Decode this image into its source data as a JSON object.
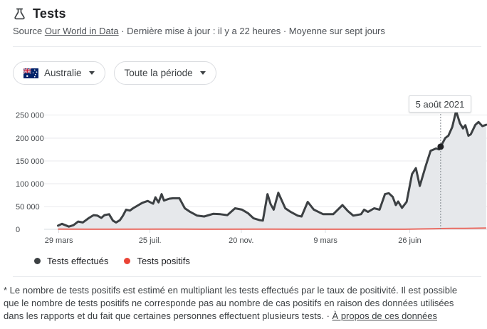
{
  "header": {
    "title": "Tests"
  },
  "source_line": {
    "prefix": "Source ",
    "link_label": "Our World in Data",
    "meta": " · Dernière mise à jour : il y a 22 heures · Moyenne sur sept jours"
  },
  "filters": {
    "country": {
      "label": "Australie",
      "flag": "australia-flag"
    },
    "period": {
      "label": "Toute la période"
    }
  },
  "tooltip": {
    "label": "5 août 2021"
  },
  "legend": [
    {
      "label": "Tests effectués",
      "color": "#3c4043"
    },
    {
      "label": "Tests positifs",
      "color": "#ea4335"
    }
  ],
  "footnote": {
    "text": "* Le nombre de tests positifs est estimé en multipliant les tests effectués par le taux de positivité. Il est possible que le nombre de tests positifs ne corresponde pas au nombre de cas positifs en raison des données utilisées dans les rapports et du fait que certaines personnes effectuent plusieurs tests.",
    "separator": " · ",
    "link_label": "À propos de ces données"
  },
  "colors": {
    "tests_line": "#3c4043",
    "tests_fill": "#e6e8eb",
    "positives_line": "#ea4335",
    "grid": "#e9eaec",
    "baseline": "#dadce0",
    "axis_text": "#45494d",
    "marker": "#202124",
    "dotted_guide": "#80868b"
  },
  "chart_data": {
    "type": "area",
    "title": "Tests",
    "xlabel": "",
    "ylabel": "",
    "grid": true,
    "legend_position": "bottom",
    "x_domain": [
      "2020-03-10",
      "2021-10-04"
    ],
    "ylim": [
      0,
      283000
    ],
    "y_ticks": [
      0,
      50000,
      100000,
      150000,
      200000,
      250000
    ],
    "y_tick_labels": [
      "0",
      "50 000",
      "100 000",
      "150 000",
      "200 000",
      "250 000"
    ],
    "x_ticks": [
      {
        "date": "2020-03-29",
        "label": "29 mars"
      },
      {
        "date": "2020-07-25",
        "label": "25 juil."
      },
      {
        "date": "2020-11-20",
        "label": "20 nov."
      },
      {
        "date": "2021-03-09",
        "label": "9 mars"
      },
      {
        "date": "2021-06-26",
        "label": "26 juin"
      }
    ],
    "marker": {
      "date": "2021-08-05",
      "value": 181000,
      "label": "5 août 2021"
    },
    "series": [
      {
        "name": "Tests effectués",
        "color": "#3c4043",
        "fill": "#e6e8eb",
        "points": [
          [
            "2020-03-28",
            8000
          ],
          [
            "2020-04-02",
            12000
          ],
          [
            "2020-04-11",
            6000
          ],
          [
            "2020-04-17",
            9000
          ],
          [
            "2020-04-23",
            17000
          ],
          [
            "2020-04-29",
            15000
          ],
          [
            "2020-05-07",
            25000
          ],
          [
            "2020-05-13",
            31000
          ],
          [
            "2020-05-18",
            30000
          ],
          [
            "2020-05-23",
            25000
          ],
          [
            "2020-05-27",
            31000
          ],
          [
            "2020-06-02",
            33000
          ],
          [
            "2020-06-07",
            19000
          ],
          [
            "2020-06-11",
            15000
          ],
          [
            "2020-06-16",
            20000
          ],
          [
            "2020-06-20",
            30000
          ],
          [
            "2020-06-24",
            43000
          ],
          [
            "2020-06-29",
            41000
          ],
          [
            "2020-07-03",
            46000
          ],
          [
            "2020-07-15",
            58000
          ],
          [
            "2020-07-22",
            62000
          ],
          [
            "2020-07-29",
            56000
          ],
          [
            "2020-08-01",
            70000
          ],
          [
            "2020-08-05",
            59000
          ],
          [
            "2020-08-09",
            77000
          ],
          [
            "2020-08-12",
            63000
          ],
          [
            "2020-08-19",
            67000
          ],
          [
            "2020-08-24",
            68000
          ],
          [
            "2020-09-01",
            68000
          ],
          [
            "2020-09-08",
            46000
          ],
          [
            "2020-09-15",
            38000
          ],
          [
            "2020-09-24",
            30000
          ],
          [
            "2020-10-03",
            28000
          ],
          [
            "2020-10-15",
            34000
          ],
          [
            "2020-10-24",
            33000
          ],
          [
            "2020-11-02",
            31000
          ],
          [
            "2020-11-12",
            46000
          ],
          [
            "2020-11-21",
            43000
          ],
          [
            "2020-11-29",
            35000
          ],
          [
            "2020-12-06",
            24000
          ],
          [
            "2020-12-14",
            20000
          ],
          [
            "2020-12-18",
            19000
          ],
          [
            "2020-12-24",
            77000
          ],
          [
            "2020-12-28",
            55000
          ],
          [
            "2021-01-01",
            43000
          ],
          [
            "2021-01-07",
            80000
          ],
          [
            "2021-01-16",
            46000
          ],
          [
            "2021-01-23",
            38000
          ],
          [
            "2021-02-01",
            30000
          ],
          [
            "2021-02-06",
            28000
          ],
          [
            "2021-02-14",
            60000
          ],
          [
            "2021-02-22",
            43000
          ],
          [
            "2021-03-06",
            33000
          ],
          [
            "2021-03-19",
            33000
          ],
          [
            "2021-03-31",
            53000
          ],
          [
            "2021-04-07",
            40000
          ],
          [
            "2021-04-14",
            30000
          ],
          [
            "2021-04-24",
            33000
          ],
          [
            "2021-04-28",
            43000
          ],
          [
            "2021-05-03",
            38000
          ],
          [
            "2021-05-11",
            46000
          ],
          [
            "2021-05-18",
            43000
          ],
          [
            "2021-05-25",
            77000
          ],
          [
            "2021-05-30",
            79000
          ],
          [
            "2021-06-04",
            71000
          ],
          [
            "2021-06-08",
            53000
          ],
          [
            "2021-06-11",
            61000
          ],
          [
            "2021-06-16",
            47000
          ],
          [
            "2021-06-22",
            60000
          ],
          [
            "2021-06-29",
            121000
          ],
          [
            "2021-07-04",
            134000
          ],
          [
            "2021-07-09",
            95000
          ],
          [
            "2021-07-17",
            140000
          ],
          [
            "2021-07-23",
            172000
          ],
          [
            "2021-07-30",
            177000
          ],
          [
            "2021-08-03",
            175000
          ],
          [
            "2021-08-05",
            181000
          ],
          [
            "2021-08-11",
            200000
          ],
          [
            "2021-08-15",
            205000
          ],
          [
            "2021-08-20",
            224000
          ],
          [
            "2021-08-25",
            259000
          ],
          [
            "2021-08-30",
            232000
          ],
          [
            "2021-09-03",
            221000
          ],
          [
            "2021-09-06",
            228000
          ],
          [
            "2021-09-10",
            205000
          ],
          [
            "2021-09-13",
            208000
          ],
          [
            "2021-09-19",
            229000
          ],
          [
            "2021-09-23",
            235000
          ],
          [
            "2021-09-28",
            226000
          ],
          [
            "2021-10-03",
            229000
          ]
        ]
      },
      {
        "name": "Tests positifs",
        "color": "#ea4335",
        "points": [
          [
            "2020-03-28",
            300
          ],
          [
            "2020-06-01",
            200
          ],
          [
            "2020-08-05",
            400
          ],
          [
            "2020-10-01",
            150
          ],
          [
            "2020-12-25",
            400
          ],
          [
            "2021-02-01",
            150
          ],
          [
            "2021-05-01",
            100
          ],
          [
            "2021-06-20",
            200
          ],
          [
            "2021-07-10",
            800
          ],
          [
            "2021-07-25",
            1200
          ],
          [
            "2021-08-05",
            1500
          ],
          [
            "2021-08-20",
            1800
          ],
          [
            "2021-09-05",
            2000
          ],
          [
            "2021-09-20",
            2300
          ],
          [
            "2021-10-03",
            2600
          ]
        ]
      }
    ]
  }
}
